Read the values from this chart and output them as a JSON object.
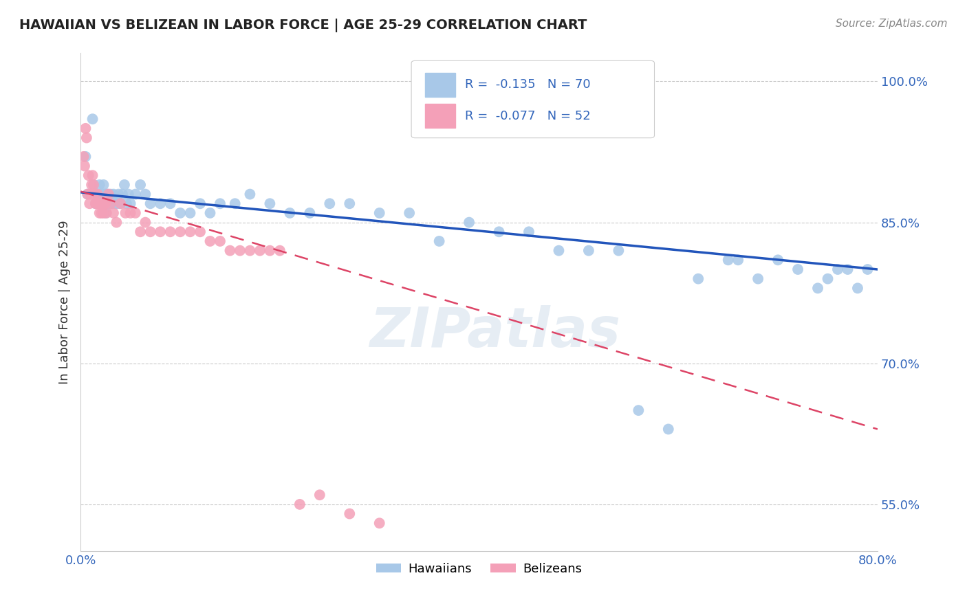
{
  "title": "HAWAIIAN VS BELIZEAN IN LABOR FORCE | AGE 25-29 CORRELATION CHART",
  "source_text": "Source: ZipAtlas.com",
  "ylabel": "In Labor Force | Age 25-29",
  "xlim": [
    0.0,
    0.8
  ],
  "ylim": [
    0.5,
    1.03
  ],
  "yticks": [
    0.55,
    0.7,
    0.85,
    1.0
  ],
  "ytick_labels": [
    "55.0%",
    "70.0%",
    "85.0%",
    "100.0%"
  ],
  "xticks": [
    0.0,
    0.8
  ],
  "xtick_labels": [
    "0.0%",
    "80.0%"
  ],
  "hawaiian_R": -0.135,
  "hawaiian_N": 70,
  "belizean_R": -0.077,
  "belizean_N": 52,
  "hawaiian_color": "#a8c8e8",
  "belizean_color": "#f4a0b8",
  "hawaiian_line_color": "#2255bb",
  "belizean_line_color": "#dd4466",
  "watermark": "ZIPatlas",
  "legend_hawaiians": "Hawaiians",
  "legend_belizeans": "Belizeans",
  "hawaiian_x": [
    0.005,
    0.007,
    0.012,
    0.013,
    0.015,
    0.017,
    0.018,
    0.019,
    0.02,
    0.021,
    0.022,
    0.023,
    0.024,
    0.025,
    0.026,
    0.027,
    0.028,
    0.03,
    0.032,
    0.033,
    0.035,
    0.037,
    0.038,
    0.04,
    0.042,
    0.044,
    0.046,
    0.048,
    0.05,
    0.055,
    0.06,
    0.065,
    0.07,
    0.08,
    0.09,
    0.1,
    0.11,
    0.12,
    0.13,
    0.14,
    0.155,
    0.17,
    0.19,
    0.21,
    0.23,
    0.25,
    0.27,
    0.3,
    0.33,
    0.36,
    0.39,
    0.42,
    0.45,
    0.48,
    0.51,
    0.54,
    0.56,
    0.59,
    0.62,
    0.65,
    0.66,
    0.68,
    0.7,
    0.72,
    0.74,
    0.75,
    0.76,
    0.77,
    0.78,
    0.79
  ],
  "hawaiian_y": [
    0.92,
    0.88,
    0.96,
    0.89,
    0.87,
    0.88,
    0.88,
    0.89,
    0.87,
    0.87,
    0.87,
    0.89,
    0.88,
    0.86,
    0.88,
    0.88,
    0.87,
    0.88,
    0.87,
    0.88,
    0.87,
    0.87,
    0.88,
    0.87,
    0.88,
    0.89,
    0.87,
    0.88,
    0.87,
    0.88,
    0.89,
    0.88,
    0.87,
    0.87,
    0.87,
    0.86,
    0.86,
    0.87,
    0.86,
    0.87,
    0.87,
    0.88,
    0.87,
    0.86,
    0.86,
    0.87,
    0.87,
    0.86,
    0.86,
    0.83,
    0.85,
    0.84,
    0.84,
    0.82,
    0.82,
    0.82,
    0.65,
    0.63,
    0.79,
    0.81,
    0.81,
    0.79,
    0.81,
    0.8,
    0.78,
    0.79,
    0.8,
    0.8,
    0.78,
    0.8
  ],
  "belizean_x": [
    0.003,
    0.004,
    0.005,
    0.006,
    0.007,
    0.008,
    0.009,
    0.01,
    0.011,
    0.012,
    0.013,
    0.014,
    0.015,
    0.016,
    0.017,
    0.018,
    0.019,
    0.02,
    0.021,
    0.022,
    0.023,
    0.024,
    0.025,
    0.026,
    0.028,
    0.03,
    0.033,
    0.036,
    0.04,
    0.045,
    0.05,
    0.055,
    0.06,
    0.065,
    0.07,
    0.08,
    0.09,
    0.1,
    0.11,
    0.12,
    0.13,
    0.14,
    0.15,
    0.16,
    0.17,
    0.18,
    0.19,
    0.2,
    0.22,
    0.24,
    0.27,
    0.3
  ],
  "belizean_y": [
    0.92,
    0.91,
    0.95,
    0.94,
    0.88,
    0.9,
    0.87,
    0.88,
    0.89,
    0.9,
    0.89,
    0.88,
    0.87,
    0.87,
    0.88,
    0.87,
    0.86,
    0.87,
    0.86,
    0.87,
    0.86,
    0.87,
    0.87,
    0.86,
    0.88,
    0.87,
    0.86,
    0.85,
    0.87,
    0.86,
    0.86,
    0.86,
    0.84,
    0.85,
    0.84,
    0.84,
    0.84,
    0.84,
    0.84,
    0.84,
    0.83,
    0.83,
    0.82,
    0.82,
    0.82,
    0.82,
    0.82,
    0.82,
    0.55,
    0.56,
    0.54,
    0.53
  ]
}
